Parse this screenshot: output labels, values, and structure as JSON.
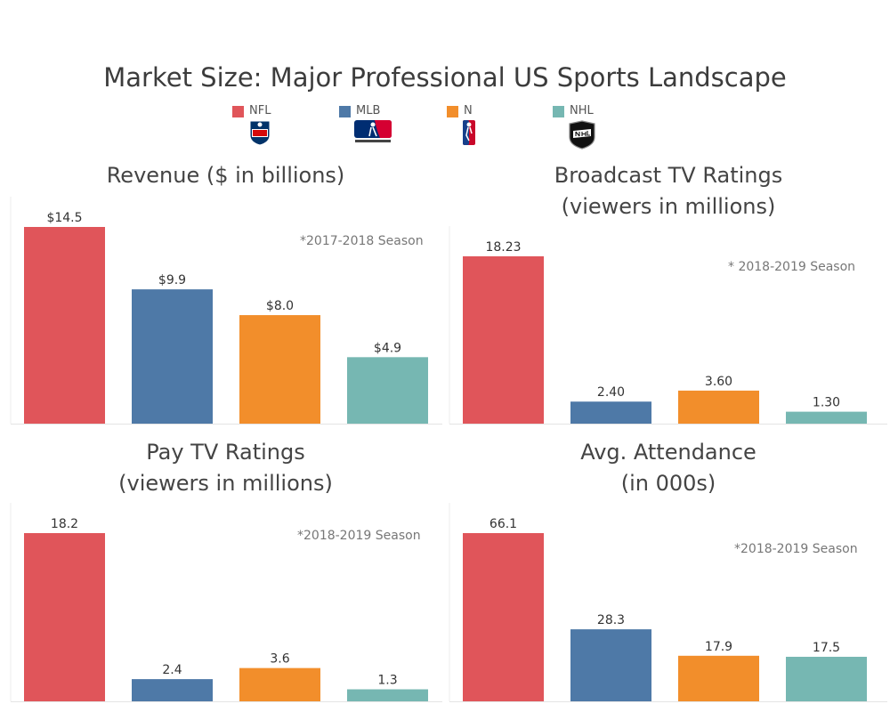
{
  "title": "Market Size: Major Professional US Sports Landscape",
  "legend": [
    {
      "label": "NFL",
      "color": "#e0555a",
      "logo": "nfl-logo"
    },
    {
      "label": "MLB",
      "color": "#4e79a7",
      "logo": "mlb-logo"
    },
    {
      "label": "N",
      "color": "#f28e2b",
      "logo": "nba-logo"
    },
    {
      "label": "NHL",
      "color": "#76b7b2",
      "logo": "nhl-logo"
    }
  ],
  "chart_data": [
    {
      "type": "bar",
      "title_lines": [
        "Revenue ($ in billions)"
      ],
      "note": "*2017-2018 Season",
      "categories": [
        "NFL",
        "MLB",
        "NBA",
        "NHL"
      ],
      "values": [
        14.5,
        9.9,
        8.0,
        4.9
      ],
      "data_labels": [
        "$14.5",
        "$9.9",
        "$8.0",
        "$4.9"
      ],
      "colors": [
        "#e0555a",
        "#4e79a7",
        "#f28e2b",
        "#76b7b2"
      ],
      "ylim": [
        0,
        14.5
      ]
    },
    {
      "type": "bar",
      "title_lines": [
        "Broadcast TV Ratings",
        "(viewers in millions)"
      ],
      "note": "* 2018-2019 Season",
      "categories": [
        "NFL",
        "MLB",
        "NBA",
        "NHL"
      ],
      "values": [
        18.23,
        2.4,
        3.6,
        1.3
      ],
      "data_labels": [
        "18.23",
        "2.40",
        "3.60",
        "1.30"
      ],
      "colors": [
        "#e0555a",
        "#4e79a7",
        "#f28e2b",
        "#76b7b2"
      ],
      "ylim": [
        0,
        18.23
      ]
    },
    {
      "type": "bar",
      "title_lines": [
        "Pay TV Ratings",
        "(viewers in millions)"
      ],
      "note": "*2018-2019 Season",
      "categories": [
        "NFL",
        "MLB",
        "NBA",
        "NHL"
      ],
      "values": [
        18.2,
        2.4,
        3.6,
        1.3
      ],
      "data_labels": [
        "18.2",
        "2.4",
        "3.6",
        "1.3"
      ],
      "colors": [
        "#e0555a",
        "#4e79a7",
        "#f28e2b",
        "#76b7b2"
      ],
      "ylim": [
        0,
        18.2
      ]
    },
    {
      "type": "bar",
      "title_lines": [
        "Avg. Attendance",
        "(in 000s)"
      ],
      "note": "*2018-2019 Season",
      "categories": [
        "NFL",
        "MLB",
        "NBA",
        "NHL"
      ],
      "values": [
        66.1,
        28.3,
        17.9,
        17.5
      ],
      "data_labels": [
        "66.1",
        "28.3",
        "17.9",
        "17.5"
      ],
      "colors": [
        "#e0555a",
        "#4e79a7",
        "#f28e2b",
        "#76b7b2"
      ],
      "ylim": [
        0,
        66.1
      ]
    }
  ]
}
